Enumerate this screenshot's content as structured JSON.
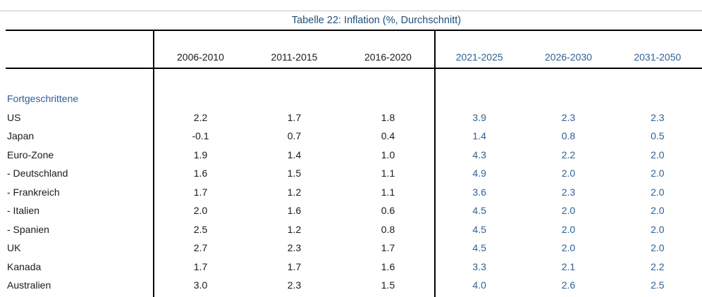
{
  "title": "Tabelle 22: Inflation (%, Durchschnitt)",
  "columns": {
    "historical": [
      "2006-2010",
      "2011-2015",
      "2016-2020"
    ],
    "forecast": [
      "2021-2025",
      "2026-2030",
      "2031-2050"
    ]
  },
  "group_label": "Fortgeschrittene",
  "rows": [
    {
      "label": "US",
      "values": [
        "2.2",
        "1.7",
        "1.8",
        "3.9",
        "2.3",
        "2.3"
      ]
    },
    {
      "label": "Japan",
      "values": [
        "-0.1",
        "0.7",
        "0.4",
        "1.4",
        "0.8",
        "0.5"
      ]
    },
    {
      "label": "Euro-Zone",
      "values": [
        "1.9",
        "1.4",
        "1.0",
        "4.3",
        "2.2",
        "2.0"
      ]
    },
    {
      "label": "- Deutschland",
      "values": [
        "1.6",
        "1.5",
        "1.1",
        "4.9",
        "2.0",
        "2.0"
      ]
    },
    {
      "label": "- Frankreich",
      "values": [
        "1.7",
        "1.2",
        "1.1",
        "3.6",
        "2.3",
        "2.0"
      ]
    },
    {
      "label": "- Italien",
      "values": [
        "2.0",
        "1.6",
        "0.6",
        "4.5",
        "2.0",
        "2.0"
      ]
    },
    {
      "label": "- Spanien",
      "values": [
        "2.5",
        "1.2",
        "0.8",
        "4.5",
        "2.0",
        "2.0"
      ]
    },
    {
      "label": "UK",
      "values": [
        "2.7",
        "2.3",
        "1.7",
        "4.5",
        "2.0",
        "2.0"
      ]
    },
    {
      "label": "Kanada",
      "values": [
        "1.7",
        "1.7",
        "1.6",
        "3.3",
        "2.1",
        "2.2"
      ]
    },
    {
      "label": "Australien",
      "values": [
        "3.0",
        "2.3",
        "1.5",
        "4.0",
        "2.6",
        "2.5"
      ]
    }
  ],
  "colors": {
    "title_blue": "#1f4e79",
    "accent_blue": "#2e5f95",
    "text_black": "#1a1a1a",
    "line_black": "#000000",
    "top_rule_gray": "#c3c3c3"
  },
  "chart_data": {
    "type": "table",
    "title": "Tabelle 22: Inflation (%, Durchschnitt)",
    "columns": [
      "2006-2010",
      "2011-2015",
      "2016-2020",
      "2021-2025",
      "2026-2030",
      "2031-2050"
    ],
    "group": "Fortgeschrittene",
    "rows": [
      {
        "label": "US",
        "values": [
          2.2,
          1.7,
          1.8,
          3.9,
          2.3,
          2.3
        ]
      },
      {
        "label": "Japan",
        "values": [
          -0.1,
          0.7,
          0.4,
          1.4,
          0.8,
          0.5
        ]
      },
      {
        "label": "Euro-Zone",
        "values": [
          1.9,
          1.4,
          1.0,
          4.3,
          2.2,
          2.0
        ]
      },
      {
        "label": "- Deutschland",
        "values": [
          1.6,
          1.5,
          1.1,
          4.9,
          2.0,
          2.0
        ]
      },
      {
        "label": "- Frankreich",
        "values": [
          1.7,
          1.2,
          1.1,
          3.6,
          2.3,
          2.0
        ]
      },
      {
        "label": "- Italien",
        "values": [
          2.0,
          1.6,
          0.6,
          4.5,
          2.0,
          2.0
        ]
      },
      {
        "label": "- Spanien",
        "values": [
          2.5,
          1.2,
          0.8,
          4.5,
          2.0,
          2.0
        ]
      },
      {
        "label": "UK",
        "values": [
          2.7,
          2.3,
          1.7,
          4.5,
          2.0,
          2.0
        ]
      },
      {
        "label": "Kanada",
        "values": [
          1.7,
          1.7,
          1.6,
          3.3,
          2.1,
          2.2
        ]
      },
      {
        "label": "Australien",
        "values": [
          3.0,
          2.3,
          1.5,
          4.0,
          2.6,
          2.5
        ]
      }
    ]
  }
}
